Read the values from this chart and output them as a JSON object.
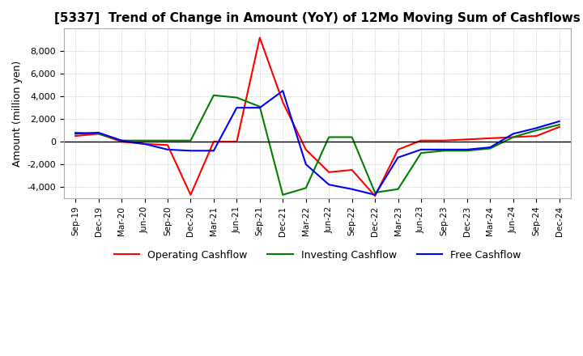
{
  "title": "[5337]  Trend of Change in Amount (YoY) of 12Mo Moving Sum of Cashflows",
  "ylabel": "Amount (million yen)",
  "ylim": [
    -5000,
    10000
  ],
  "yticks": [
    -4000,
    -2000,
    0,
    2000,
    4000,
    6000,
    8000
  ],
  "x_labels": [
    "Sep-19",
    "Dec-19",
    "Mar-20",
    "Jun-20",
    "Sep-20",
    "Dec-20",
    "Mar-21",
    "Jun-21",
    "Sep-21",
    "Dec-21",
    "Mar-22",
    "Jun-22",
    "Sep-22",
    "Dec-22",
    "Mar-23",
    "Jun-23",
    "Sep-23",
    "Dec-23",
    "Mar-24",
    "Jun-24",
    "Sep-24",
    "Dec-24"
  ],
  "operating": [
    500,
    700,
    0,
    -200,
    -300,
    -4700,
    0,
    0,
    9200,
    3500,
    -700,
    -2700,
    -2500,
    -4800,
    -700,
    100,
    100,
    200,
    300,
    400,
    500,
    1300
  ],
  "investing": [
    800,
    700,
    100,
    100,
    100,
    100,
    4100,
    3900,
    3100,
    -4700,
    -4100,
    400,
    400,
    -4500,
    -4200,
    -1000,
    -800,
    -800,
    -600,
    400,
    1000,
    1500
  ],
  "free": [
    700,
    800,
    100,
    -200,
    -700,
    -800,
    -800,
    3000,
    3000,
    4500,
    -2000,
    -3800,
    -4200,
    -4700,
    -1400,
    -700,
    -700,
    -700,
    -500,
    700,
    1200,
    1800
  ],
  "operating_color": "#ff0000",
  "investing_color": "#008000",
  "free_color": "#0000ff",
  "background_color": "#ffffff",
  "grid_color": "#b0b0b0",
  "title_fontsize": 11,
  "legend_labels": [
    "Operating Cashflow",
    "Investing Cashflow",
    "Free Cashflow"
  ]
}
